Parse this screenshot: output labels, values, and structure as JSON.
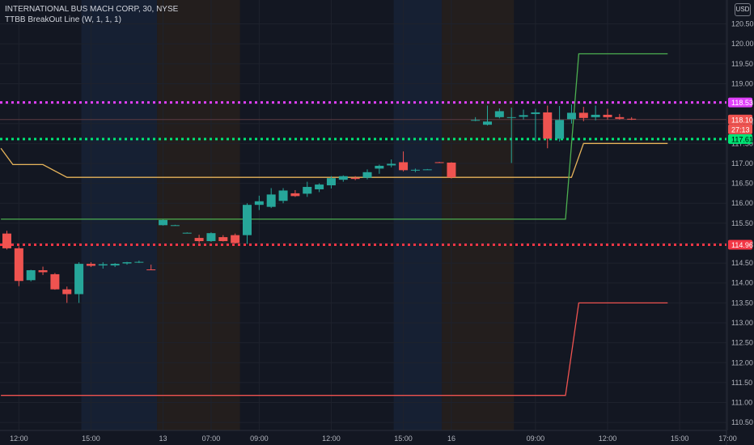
{
  "header": {
    "symbol_line": "INTERNATIONAL BUS MACH CORP, 30, NYSE",
    "indicator_line": "TTBB BreakOut Line (W, 1, 1, 1)"
  },
  "currency_button": "USD",
  "colors": {
    "background": "#131722",
    "grid": "#1e222d",
    "axis_text": "#b2b5be",
    "up": "#26a69a",
    "down": "#ef5350",
    "session_blue": "#162033",
    "session_orange": "#231e1d",
    "magenta": "#e040fb",
    "green_dotted": "#00e676",
    "red_dotted": "#f23645",
    "green_line": "#4caf50",
    "red_line": "#ef5350",
    "yellow_line": "#e6b35a"
  },
  "chart_data": {
    "type": "candlestick",
    "title": "INTERNATIONAL BUS MACH CORP, 30, NYSE",
    "y_ticks": [
      "110.50",
      "111.00",
      "111.50",
      "112.00",
      "112.50",
      "113.00",
      "113.50",
      "114.00",
      "114.50",
      "115.00",
      "115.50",
      "116.00",
      "116.50",
      "117.00",
      "117.50",
      "118.00",
      "118.50",
      "119.00",
      "119.50",
      "120.00",
      "120.50"
    ],
    "ylim": [
      110.3,
      121.1
    ],
    "x_ticks": [
      {
        "label": "12:00",
        "bar": 1
      },
      {
        "label": "15:00",
        "bar": 7
      },
      {
        "label": "13",
        "bar": 13
      },
      {
        "label": "07:00",
        "bar": 17
      },
      {
        "label": "09:00",
        "bar": 21
      },
      {
        "label": "12:00",
        "bar": 27
      },
      {
        "label": "15:00",
        "bar": 33
      },
      {
        "label": "16",
        "bar": 37
      },
      {
        "label": "09:00",
        "bar": 44
      },
      {
        "label": "12:00",
        "bar": 50
      },
      {
        "label": "15:00",
        "bar": 56
      },
      {
        "label": "17:00",
        "bar": 60
      }
    ],
    "candles": [
      {
        "o": 115.24,
        "h": 115.31,
        "l": 114.84,
        "c": 114.87
      },
      {
        "o": 114.87,
        "h": 114.92,
        "l": 113.92,
        "c": 114.05
      },
      {
        "o": 114.07,
        "h": 114.33,
        "l": 114.04,
        "c": 114.32
      },
      {
        "o": 114.32,
        "h": 114.41,
        "l": 114.2,
        "c": 114.27
      },
      {
        "o": 114.22,
        "h": 114.25,
        "l": 113.83,
        "c": 113.84
      },
      {
        "o": 113.84,
        "h": 113.91,
        "l": 113.5,
        "c": 113.72
      },
      {
        "o": 113.72,
        "h": 114.52,
        "l": 113.5,
        "c": 114.48
      },
      {
        "o": 114.48,
        "h": 114.52,
        "l": 114.4,
        "c": 114.43
      },
      {
        "o": 114.44,
        "h": 114.52,
        "l": 114.36,
        "c": 114.47
      },
      {
        "o": 114.44,
        "h": 114.5,
        "l": 114.4,
        "c": 114.48
      },
      {
        "o": 114.49,
        "h": 114.53,
        "l": 114.46,
        "c": 114.52
      },
      {
        "o": 114.53,
        "h": 114.56,
        "l": 114.5,
        "c": 114.53
      },
      {
        "o": 114.34,
        "h": 114.46,
        "l": 114.32,
        "c": 114.33
      },
      {
        "o": 115.45,
        "h": 115.59,
        "l": 115.44,
        "c": 115.58
      },
      {
        "o": 115.45,
        "h": 115.46,
        "l": 115.44,
        "c": 115.45
      },
      {
        "o": 115.26,
        "h": 115.27,
        "l": 115.25,
        "c": 115.26
      },
      {
        "o": 115.13,
        "h": 115.21,
        "l": 115.0,
        "c": 115.05
      },
      {
        "o": 115.05,
        "h": 115.27,
        "l": 115.03,
        "c": 115.25
      },
      {
        "o": 115.15,
        "h": 115.2,
        "l": 115.04,
        "c": 115.05
      },
      {
        "o": 115.2,
        "h": 115.24,
        "l": 114.99,
        "c": 115.0
      },
      {
        "o": 115.2,
        "h": 116.0,
        "l": 114.98,
        "c": 115.96
      },
      {
        "o": 115.96,
        "h": 116.19,
        "l": 115.83,
        "c": 116.05
      },
      {
        "o": 115.91,
        "h": 116.38,
        "l": 115.88,
        "c": 116.22
      },
      {
        "o": 116.06,
        "h": 116.38,
        "l": 116.0,
        "c": 116.32
      },
      {
        "o": 116.25,
        "h": 116.33,
        "l": 116.16,
        "c": 116.18
      },
      {
        "o": 116.24,
        "h": 116.54,
        "l": 116.16,
        "c": 116.41
      },
      {
        "o": 116.35,
        "h": 116.5,
        "l": 116.28,
        "c": 116.47
      },
      {
        "o": 116.45,
        "h": 116.68,
        "l": 116.37,
        "c": 116.63
      },
      {
        "o": 116.59,
        "h": 116.7,
        "l": 116.54,
        "c": 116.68
      },
      {
        "o": 116.64,
        "h": 116.68,
        "l": 116.58,
        "c": 116.61
      },
      {
        "o": 116.64,
        "h": 116.85,
        "l": 116.6,
        "c": 116.78
      },
      {
        "o": 116.87,
        "h": 116.97,
        "l": 116.74,
        "c": 116.94
      },
      {
        "o": 116.95,
        "h": 117.1,
        "l": 116.9,
        "c": 116.99
      },
      {
        "o": 117.03,
        "h": 117.3,
        "l": 116.8,
        "c": 116.83
      },
      {
        "o": 116.83,
        "h": 116.87,
        "l": 116.78,
        "c": 116.84
      },
      {
        "o": 116.85,
        "h": 116.86,
        "l": 116.84,
        "c": 116.85
      },
      {
        "o": 117.03,
        "h": 117.04,
        "l": 117.01,
        "c": 117.02
      },
      {
        "o": 117.02,
        "h": 117.03,
        "l": 116.62,
        "c": 116.65
      },
      null,
      {
        "o": 118.08,
        "h": 118.16,
        "l": 118.06,
        "c": 118.09
      },
      {
        "o": 117.97,
        "h": 118.45,
        "l": 117.95,
        "c": 118.05
      },
      {
        "o": 118.16,
        "h": 118.38,
        "l": 118.13,
        "c": 118.31
      },
      {
        "o": 118.15,
        "h": 118.4,
        "l": 117.01,
        "c": 118.16
      },
      {
        "o": 118.17,
        "h": 118.35,
        "l": 118.1,
        "c": 118.21
      },
      {
        "o": 118.24,
        "h": 118.37,
        "l": 117.55,
        "c": 118.28
      },
      {
        "o": 118.28,
        "h": 118.45,
        "l": 117.38,
        "c": 117.62
      },
      {
        "o": 117.62,
        "h": 118.44,
        "l": 117.55,
        "c": 118.09
      },
      {
        "o": 118.11,
        "h": 118.48,
        "l": 118.0,
        "c": 118.27
      },
      {
        "o": 118.27,
        "h": 118.42,
        "l": 118.06,
        "c": 118.14
      },
      {
        "o": 118.16,
        "h": 118.45,
        "l": 118.08,
        "c": 118.22
      },
      {
        "o": 118.22,
        "h": 118.37,
        "l": 118.1,
        "c": 118.16
      },
      {
        "o": 118.16,
        "h": 118.24,
        "l": 118.1,
        "c": 118.12
      },
      {
        "o": 118.12,
        "h": 118.16,
        "l": 118.09,
        "c": 118.1
      }
    ],
    "lines": {
      "yellow": [
        [
          -0.5,
          117.38
        ],
        [
          0.5,
          116.97
        ],
        [
          3,
          116.97
        ],
        [
          5,
          116.65
        ],
        [
          47,
          116.65
        ],
        [
          48,
          117.5
        ],
        [
          55,
          117.5
        ]
      ],
      "green": [
        [
          -0.5,
          115.6
        ],
        [
          46.5,
          115.6
        ],
        [
          47.6,
          119.75
        ],
        [
          55,
          119.75
        ]
      ],
      "red": [
        [
          -0.5,
          111.18
        ],
        [
          46.5,
          111.18
        ],
        [
          47.6,
          113.5
        ],
        [
          55,
          113.5
        ]
      ]
    },
    "horizontal_levels": [
      {
        "value": 118.53,
        "label": "118.53",
        "style": "magenta"
      },
      {
        "value": 117.61,
        "label": "117.61",
        "style": "green"
      },
      {
        "value": 114.96,
        "label": "114.96",
        "style": "red"
      }
    ],
    "last_price": {
      "value": 118.1,
      "label": "118.10",
      "countdown": "27:13"
    },
    "grid": true,
    "legend": "top-left"
  }
}
